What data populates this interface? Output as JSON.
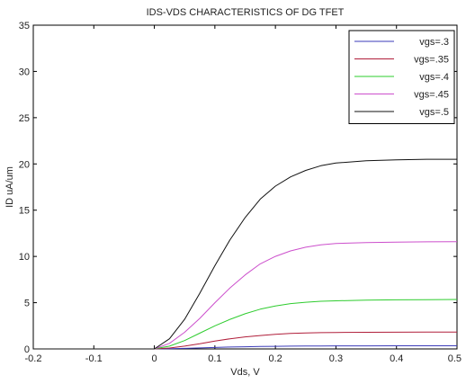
{
  "chart_data": {
    "type": "line",
    "title": "IDS-VDS CHARACTERISTICS OF DG TFET",
    "xlabel": "Vds, V",
    "ylabel": "ID uA/um",
    "xlim": [
      -0.2,
      0.5
    ],
    "ylim": [
      0,
      35
    ],
    "xticks": [
      "-0.2",
      "-0.1",
      "0",
      "0.1",
      "0.2",
      "0.3",
      "0.4",
      "0.5"
    ],
    "yticks": [
      "0",
      "5",
      "10",
      "15",
      "20",
      "25",
      "30",
      "35"
    ],
    "grid": false,
    "legend_position": "top-right",
    "x": [
      -0.2,
      -0.1,
      0,
      0.025,
      0.05,
      0.075,
      0.1,
      0.125,
      0.15,
      0.175,
      0.2,
      0.225,
      0.25,
      0.275,
      0.3,
      0.35,
      0.4,
      0.45,
      0.5
    ],
    "series": [
      {
        "name": "vgs=.3",
        "color": "#3b3bb8",
        "values": [
          0,
          0,
          0,
          0.02,
          0.06,
          0.11,
          0.16,
          0.2,
          0.23,
          0.26,
          0.28,
          0.3,
          0.31,
          0.32,
          0.33,
          0.33,
          0.34,
          0.34,
          0.34
        ]
      },
      {
        "name": "vgs=.35",
        "color": "#b01e3a",
        "values": [
          0,
          0,
          0,
          0.1,
          0.3,
          0.55,
          0.85,
          1.1,
          1.3,
          1.45,
          1.58,
          1.67,
          1.72,
          1.76,
          1.78,
          1.8,
          1.81,
          1.82,
          1.82
        ]
      },
      {
        "name": "vgs=.4",
        "color": "#2ecc2e",
        "values": [
          0,
          0,
          0,
          0.3,
          0.9,
          1.7,
          2.5,
          3.2,
          3.8,
          4.3,
          4.65,
          4.9,
          5.05,
          5.15,
          5.2,
          5.28,
          5.31,
          5.33,
          5.35
        ]
      },
      {
        "name": "vgs=.45",
        "color": "#cc4fcc",
        "values": [
          0,
          0,
          0,
          0.6,
          1.8,
          3.3,
          5.0,
          6.6,
          8.0,
          9.2,
          10.0,
          10.6,
          11.0,
          11.25,
          11.4,
          11.5,
          11.55,
          11.58,
          11.6
        ]
      },
      {
        "name": "vgs=.5",
        "color": "#111111",
        "values": [
          0,
          0,
          0,
          1.1,
          3.2,
          6.0,
          9.0,
          11.8,
          14.2,
          16.2,
          17.6,
          18.6,
          19.3,
          19.8,
          20.1,
          20.35,
          20.45,
          20.5,
          20.5
        ]
      }
    ]
  }
}
